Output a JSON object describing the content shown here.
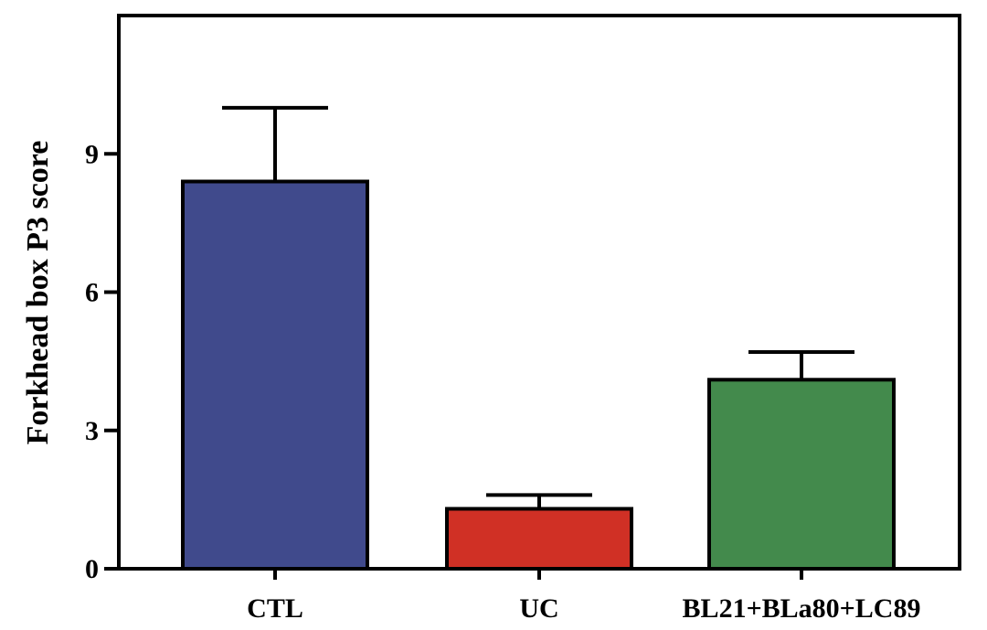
{
  "chart_data": {
    "type": "bar",
    "title": "",
    "xlabel": "",
    "ylabel": "Forkhead box P3 score",
    "categories": [
      "CTL",
      "UC",
      "BL21+BLa80+LC89"
    ],
    "values": [
      8.4,
      1.3,
      4.1
    ],
    "errors": [
      1.6,
      0.3,
      0.6
    ],
    "colors": [
      "#404a8c",
      "#d03025",
      "#438a4c"
    ],
    "yticks": [
      0,
      3,
      6,
      9
    ],
    "ylim": [
      0,
      12
    ],
    "grid": false
  }
}
